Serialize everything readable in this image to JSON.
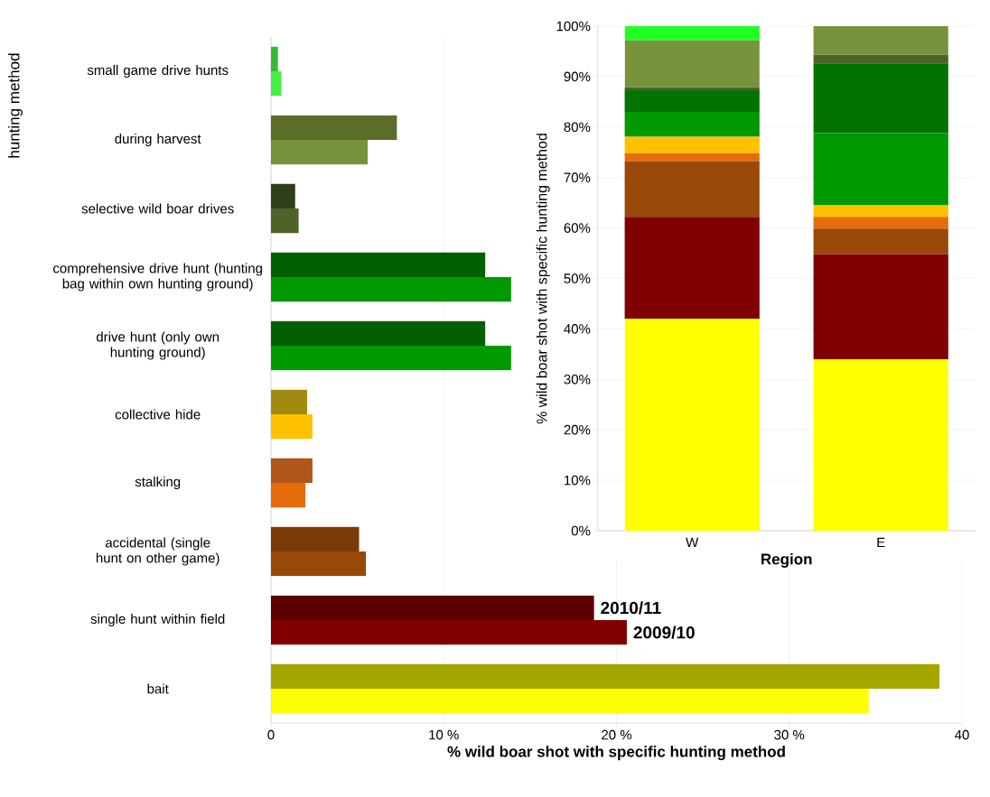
{
  "chart_data": [
    {
      "type": "bar",
      "orientation": "horizontal",
      "xlabel": "% wild boar shot with specific hunting method",
      "ylabel": "hunting method",
      "categories": [
        "small game drive hunts",
        "during harvest",
        "selective wild boar drives",
        "comprehensive drive hunt (hunting bag within own hunting ground)",
        "drive hunt (only own hunting ground)",
        "collective hide",
        "stalking",
        "accidental (single hunt on other game)",
        "single hunt within field",
        "bait"
      ],
      "series": [
        {
          "name": "2010/11",
          "colors": [
            "#33bb33",
            "#5a6e2a",
            "#2f3d18",
            "#005f00",
            "#005f00",
            "#a08a10",
            "#b0561a",
            "#7a3a08",
            "#5a0000",
            "#a6a600"
          ],
          "values": [
            0.4,
            7.3,
            1.4,
            12.4,
            12.4,
            2.1,
            2.4,
            5.1,
            18.7,
            38.7
          ]
        },
        {
          "name": "2009/10",
          "colors": [
            "#44ee44",
            "#77933c",
            "#4f6228",
            "#009900",
            "#009900",
            "#ffc000",
            "#e46c0a",
            "#984807",
            "#800000",
            "#ffff00"
          ],
          "values": [
            0.6,
            5.6,
            1.6,
            13.9,
            13.9,
            2.4,
            2.0,
            5.5,
            20.6,
            34.6
          ]
        }
      ],
      "xlim": [
        0,
        40
      ],
      "xticks": [
        0,
        {
          "value": 10,
          "label": "10 %"
        },
        {
          "value": 20,
          "label": "20 %"
        },
        {
          "value": 30,
          "label": "30 %"
        },
        40
      ],
      "grid": "x"
    },
    {
      "type": "bar",
      "stacked": true,
      "xlabel": "Region",
      "ylabel": "% wild boar shot with specific hunting method",
      "categories": [
        "W",
        "E"
      ],
      "series": [
        {
          "color": "#ffff00",
          "values": [
            42,
            34
          ]
        },
        {
          "color": "#800000",
          "values": [
            20.2,
            20.8
          ]
        },
        {
          "color": "#984807",
          "values": [
            11,
            5.1
          ]
        },
        {
          "color": "#e46c0a",
          "values": [
            1.6,
            2.3
          ]
        },
        {
          "color": "#ffc000",
          "values": [
            3.3,
            2.3
          ]
        },
        {
          "color": "#009900",
          "values": [
            4.9,
            14.3
          ]
        },
        {
          "color": "#007300",
          "values": [
            4.3,
            13.8
          ]
        },
        {
          "color": "#4f6228",
          "values": [
            0.6,
            1.7
          ]
        },
        {
          "color": "#77933c",
          "values": [
            9.3,
            5.7
          ]
        },
        {
          "color": "#22ff22",
          "values": [
            2.8,
            0
          ]
        }
      ],
      "ylim": [
        0,
        100
      ],
      "yticks": [
        {
          "value": 0,
          "label": "0%"
        },
        {
          "value": 10,
          "label": "10%"
        },
        {
          "value": 20,
          "label": "20%"
        },
        {
          "value": 30,
          "label": "30%"
        },
        {
          "value": 40,
          "label": "40%"
        },
        {
          "value": 50,
          "label": "50%"
        },
        {
          "value": 60,
          "label": "60%"
        },
        {
          "value": 70,
          "label": "70%"
        },
        {
          "value": 80,
          "label": "80%"
        },
        {
          "value": 90,
          "label": "90%"
        },
        {
          "value": 100,
          "label": "100%"
        }
      ],
      "grid": "y"
    }
  ]
}
